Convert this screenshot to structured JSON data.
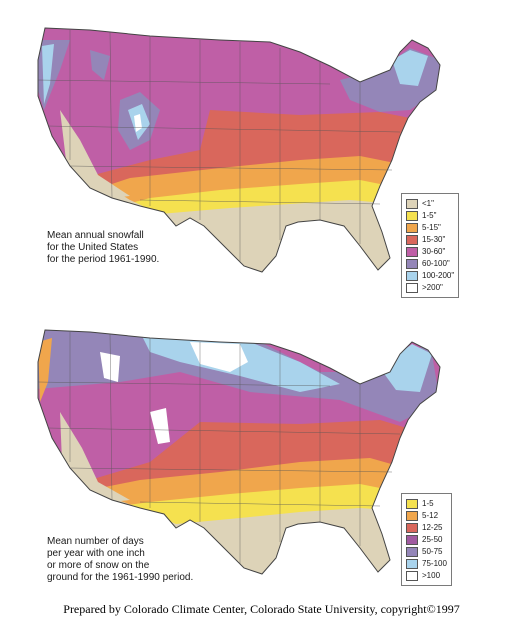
{
  "maps": [
    {
      "caption": [
        "Mean annual snowfall",
        "for the United States",
        "for the period 1961-1990."
      ],
      "legend": [
        {
          "label": "<1\"",
          "color": "#ddd3b8"
        },
        {
          "label": "1-5\"",
          "color": "#f5e14f"
        },
        {
          "label": "5-15\"",
          "color": "#f0a64c"
        },
        {
          "label": "15-30\"",
          "color": "#d9675c"
        },
        {
          "label": "30-60\"",
          "color": "#bf5fa6"
        },
        {
          "label": "60-100\"",
          "color": "#9486b8"
        },
        {
          "label": "100-200\"",
          "color": "#a9d3ec"
        },
        {
          "label": ">200\"",
          "color": "#ffffff"
        }
      ]
    },
    {
      "caption": [
        "Mean number of days",
        "per year with one inch",
        "or more of snow on the",
        "ground for the 1961-1990 period."
      ],
      "legend": [
        {
          "label": "1-5",
          "color": "#f5e14f"
        },
        {
          "label": "5-12",
          "color": "#f0a64c"
        },
        {
          "label": "12-25",
          "color": "#d9675c"
        },
        {
          "label": "25-50",
          "color": "#a05aa0"
        },
        {
          "label": "50-75",
          "color": "#9486b8"
        },
        {
          "label": "75-100",
          "color": "#a9d3ec"
        },
        {
          "label": ">100",
          "color": "#ffffff"
        }
      ]
    }
  ],
  "credit": "Prepared by Colorado Climate Center, Colorado State University, copyright©1997"
}
